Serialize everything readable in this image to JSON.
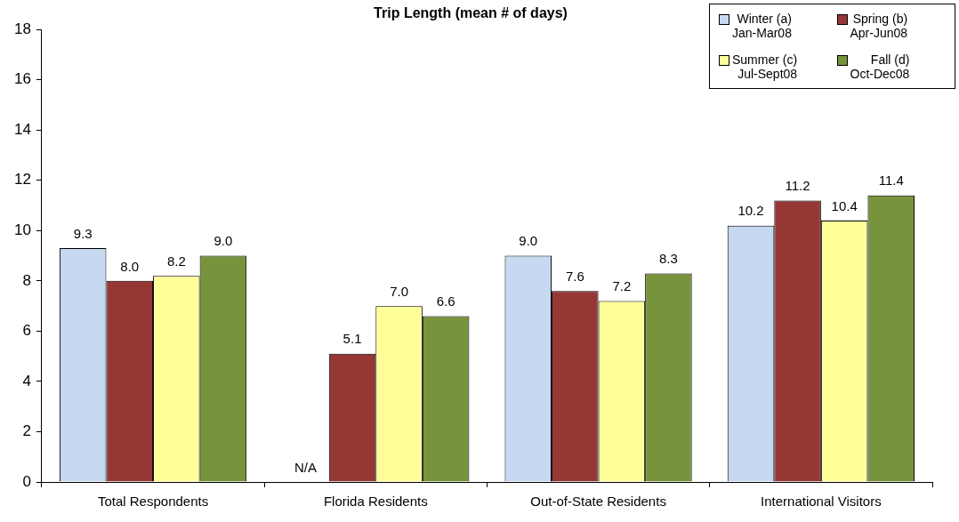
{
  "chart_data": {
    "type": "bar",
    "title": "Trip Length (mean # of days)",
    "categories": [
      "Total Respondents",
      "Florida Residents",
      "Out-of-State Residents",
      "International Visitors"
    ],
    "series": [
      {
        "name": "Winter (a)\nJan-Mar08",
        "color": "#c6d9f1",
        "values": [
          9.3,
          null,
          9.0,
          10.2
        ],
        "value_labels": [
          "9.3",
          "N/A",
          "9.0",
          "10.2"
        ]
      },
      {
        "name": "Spring (b)\nApr-Jun08",
        "color": "#953735",
        "values": [
          8.0,
          5.1,
          7.6,
          11.2
        ],
        "value_labels": [
          "8.0",
          "5.1",
          "7.6",
          "11.2"
        ]
      },
      {
        "name": "Summer (c)\nJul-Sept08",
        "color": "#ffff99",
        "values": [
          8.2,
          7.0,
          7.2,
          10.4
        ],
        "value_labels": [
          "8.2",
          "7.0",
          "7.2",
          "10.4"
        ]
      },
      {
        "name": "Fall (d)\nOct-Dec08",
        "color": "#77933c",
        "values": [
          9.0,
          6.6,
          8.3,
          11.4
        ],
        "value_labels": [
          "9.0",
          "6.6",
          "8.3",
          "11.4"
        ]
      }
    ],
    "ylim": [
      0,
      18
    ],
    "yticks": [
      0,
      2,
      4,
      6,
      8,
      10,
      12,
      14,
      16,
      18
    ],
    "grid": false,
    "legend": "top right"
  }
}
